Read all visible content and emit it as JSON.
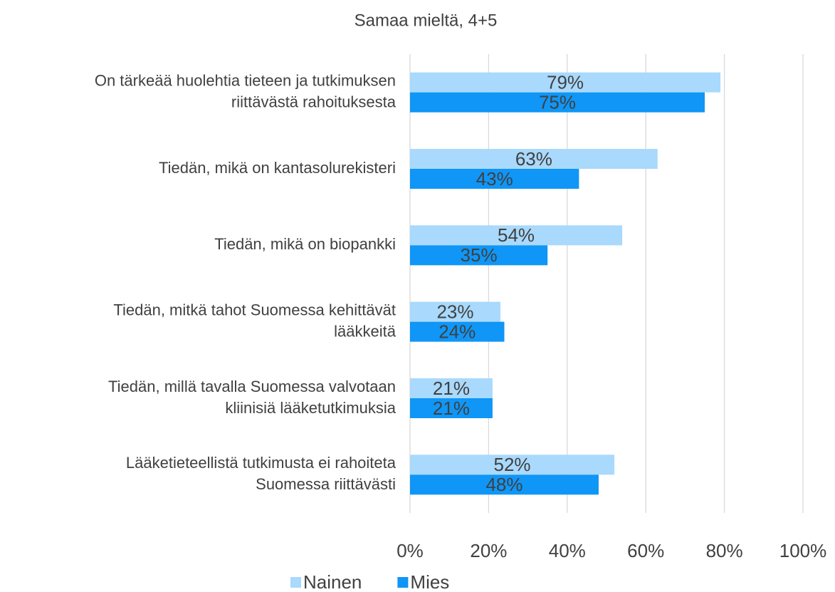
{
  "chart_data": {
    "type": "bar",
    "orientation": "horizontal",
    "title": "Samaa mieltä, 4+5",
    "categories": [
      [
        "On tärkeää huolehtia tieteen ja tutkimuksen",
        "riittävästä rahoituksesta"
      ],
      [
        "Tiedän, mikä on kantasolurekisteri"
      ],
      [
        "Tiedän, mikä on biopankki"
      ],
      [
        "Tiedän, mitkä tahot Suomessa kehittävät",
        "lääkkeitä"
      ],
      [
        "Tiedän, millä tavalla Suomessa valvotaan",
        "kliinisiä lääketutkimuksia"
      ],
      [
        "Lääketieteellistä tutkimusta ei rahoiteta",
        "Suomessa riittävästi"
      ]
    ],
    "series": [
      {
        "name": "Nainen",
        "color": "#a9d9fc",
        "values": [
          79,
          63,
          54,
          23,
          21,
          52
        ],
        "value_labels": [
          "79%",
          "63%",
          "54%",
          "23%",
          "21%",
          "52%"
        ]
      },
      {
        "name": "Mies",
        "color": "#0f96f6",
        "values": [
          75,
          43,
          35,
          24,
          21,
          48
        ],
        "value_labels": [
          "75%",
          "43%",
          "35%",
          "24%",
          "21%",
          "48%"
        ]
      }
    ],
    "xlim": [
      0,
      100
    ],
    "xticks": [
      {
        "value": 0,
        "label": "0%"
      },
      {
        "value": 20,
        "label": "20%"
      },
      {
        "value": 40,
        "label": "40%"
      },
      {
        "value": 60,
        "label": "60%"
      },
      {
        "value": 80,
        "label": "80%"
      },
      {
        "value": 100,
        "label": "100%"
      }
    ],
    "grid": true,
    "legend": "bottom"
  }
}
